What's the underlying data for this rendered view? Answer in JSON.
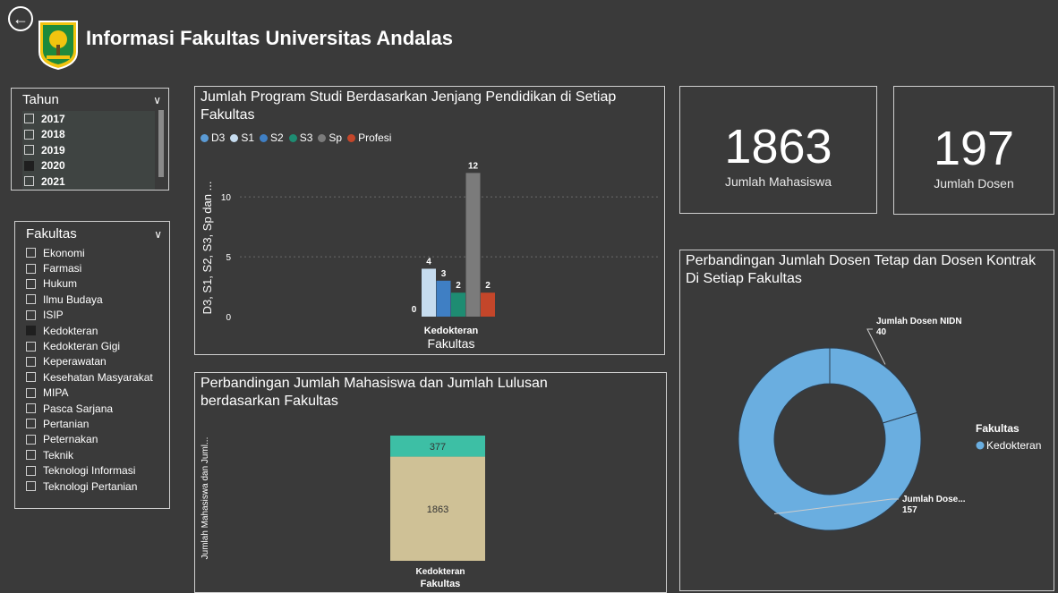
{
  "header": {
    "title": "Informasi Fakultas Universitas Andalas",
    "back_icon": "arrow-left-circle-icon"
  },
  "year_slicer": {
    "title": "Tahun",
    "items": [
      {
        "label": "2017",
        "checked": false
      },
      {
        "label": "2018",
        "checked": false
      },
      {
        "label": "2019",
        "checked": false
      },
      {
        "label": "2020",
        "checked": true
      },
      {
        "label": "2021",
        "checked": false
      }
    ]
  },
  "faculty_slicer": {
    "title": "Fakultas",
    "items": [
      {
        "label": "Ekonomi",
        "checked": false
      },
      {
        "label": "Farmasi",
        "checked": false
      },
      {
        "label": "Hukum",
        "checked": false
      },
      {
        "label": "Ilmu Budaya",
        "checked": false
      },
      {
        "label": "ISIP",
        "checked": false
      },
      {
        "label": "Kedokteran",
        "checked": true
      },
      {
        "label": "Kedokteran Gigi",
        "checked": false
      },
      {
        "label": "Keperawatan",
        "checked": false
      },
      {
        "label": "Kesehatan Masyarakat",
        "checked": false
      },
      {
        "label": "MIPA",
        "checked": false
      },
      {
        "label": "Pasca Sarjana",
        "checked": false
      },
      {
        "label": "Pertanian",
        "checked": false
      },
      {
        "label": "Peternakan",
        "checked": false
      },
      {
        "label": "Teknik",
        "checked": false
      },
      {
        "label": "Teknologi Informasi",
        "checked": false
      },
      {
        "label": "Teknologi Pertanian",
        "checked": false
      }
    ]
  },
  "kpis": {
    "mahasiswa": {
      "value": "1863",
      "label": "Jumlah Mahasiswa"
    },
    "dosen": {
      "value": "197",
      "label": "Jumlah Dosen"
    }
  },
  "chart_data": [
    {
      "type": "bar",
      "title": "Jumlah Program Studi Berdasarkan Jenjang Pendidikan di Setiap Fakultas",
      "xlabel": "Fakultas",
      "ylabel": "D3, S1, S2, S3, Sp dan ...",
      "categories": [
        "Kedokteran"
      ],
      "yticks": [
        "0",
        "5",
        "10"
      ],
      "ylim": [
        0,
        13
      ],
      "grid": true,
      "legend": "top-left",
      "series": [
        {
          "name": "D3",
          "values": [
            0
          ],
          "color": "#5b9bd5"
        },
        {
          "name": "S1",
          "values": [
            4
          ],
          "color": "#c6dcef"
        },
        {
          "name": "S2",
          "values": [
            3
          ],
          "color": "#3f7fc4"
        },
        {
          "name": "S3",
          "values": [
            2
          ],
          "color": "#1e8c72"
        },
        {
          "name": "Sp",
          "values": [
            12
          ],
          "color": "#7b7b7b"
        },
        {
          "name": "Profesi",
          "values": [
            2
          ],
          "color": "#c4462a"
        }
      ]
    },
    {
      "type": "bar",
      "stacked": true,
      "title": "Perbandingan Jumlah Mahasiswa dan Jumlah Lulusan berdasarkan Fakultas",
      "xlabel": "Fakultas",
      "ylabel": "Jumlah Mahasiswa dan Juml...",
      "categories": [
        "Kedokteran"
      ],
      "series": [
        {
          "values": [
            1863
          ],
          "color": "#cfc196"
        },
        {
          "values": [
            377
          ],
          "color": "#3dbfa5"
        }
      ]
    },
    {
      "type": "pie",
      "donut": true,
      "title": "Perbandingan Jumlah Dosen Tetap dan Dosen Kontrak Di Setiap Fakultas",
      "legend_title": "Fakultas",
      "legend_entries": [
        "Kedokteran"
      ],
      "legend": "right",
      "color": "#6aaee0",
      "slices": [
        {
          "label": "Jumlah Dosen NIDN",
          "value": 40
        },
        {
          "label": "Jumlah Dose...",
          "value": 157
        }
      ]
    }
  ]
}
